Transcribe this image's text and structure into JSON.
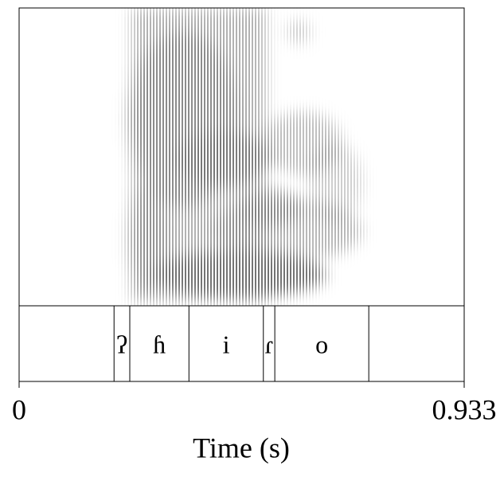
{
  "chart_data": {
    "type": "spectrogram",
    "xlabel": "Time (s)",
    "xlim": [
      0,
      0.933
    ],
    "xticks": [
      0,
      0.933
    ],
    "boundaries": [
      0.199,
      0.232,
      0.356,
      0.512,
      0.536,
      0.733
    ],
    "labels": [
      null,
      "ʔ",
      "ɦ",
      "i",
      "ɾ",
      "o",
      null
    ]
  }
}
